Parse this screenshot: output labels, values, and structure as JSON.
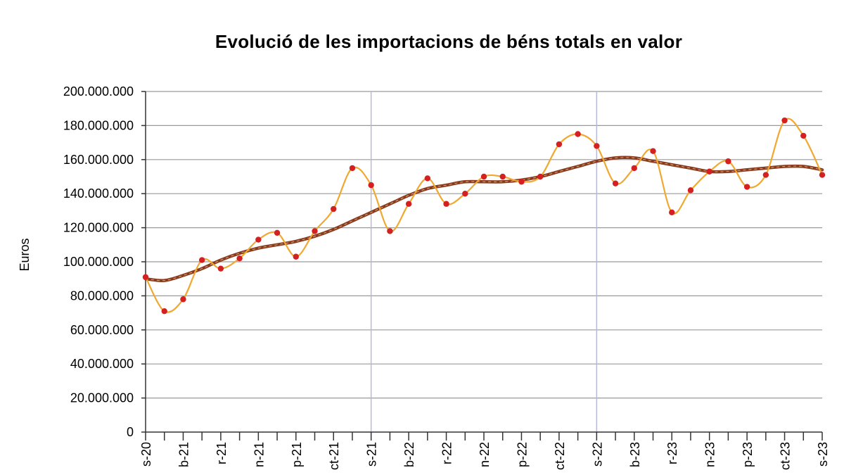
{
  "chart_data": {
    "type": "line",
    "title": "Evolució de les importacions de béns totals en valor",
    "xlabel": "",
    "ylabel": "Euros",
    "ylim": [
      0,
      200000000
    ],
    "yticks": [
      "0",
      "20.000.000",
      "40.000.000",
      "60.000.000",
      "80.000.000",
      "100.000.000",
      "120.000.000",
      "140.000.000",
      "160.000.000",
      "180.000.000",
      "200.000.000"
    ],
    "xtick_labels": [
      "s-20",
      "b-21",
      "r-21",
      "n-21",
      "p-21",
      "ct-21",
      "s-21",
      "b-22",
      "r-22",
      "n-22",
      "p-22",
      "ct-22",
      "s-22",
      "b-23",
      "r-23",
      "n-23",
      "p-23",
      "ct-23",
      "s-23"
    ],
    "grid": true,
    "colors": {
      "monthly_line": "#F0A830",
      "monthly_points": "#D42020",
      "trend_line": "#8B3A1E",
      "grid": "#9a9a9a",
      "year_separator": "#b8b8dc"
    },
    "categories": [
      "s-20",
      "",
      "b-21",
      "",
      "r-21",
      "",
      "n-21",
      "",
      "p-21",
      "",
      "ct-21",
      "",
      "s-21",
      "",
      "b-22",
      "",
      "r-22",
      "",
      "n-22",
      "",
      "p-22",
      "",
      "ct-22",
      "",
      "s-22",
      "",
      "b-23",
      "",
      "r-23",
      "",
      "n-23",
      "",
      "p-23",
      "",
      "ct-23",
      "",
      "s-23"
    ],
    "series": [
      {
        "values": [
          91000000,
          71000000,
          78000000,
          101000000,
          96000000,
          102000000,
          113000000,
          117000000,
          103000000,
          118000000,
          131000000,
          155000000,
          145000000,
          118000000,
          134000000,
          149000000,
          134000000,
          140000000,
          150000000,
          150000000,
          147000000,
          150000000,
          169000000,
          175000000,
          168000000,
          146000000,
          155000000,
          165000000,
          129000000,
          142000000,
          153000000,
          159000000,
          144000000,
          151000000,
          183000000,
          174000000,
          151000000
        ]
      },
      {
        "values": [
          90000000,
          89000000,
          92000000,
          96000000,
          101000000,
          105000000,
          108000000,
          110000000,
          112000000,
          115000000,
          119000000,
          124000000,
          129000000,
          134000000,
          139000000,
          143000000,
          145000000,
          147000000,
          147000000,
          147000000,
          148000000,
          150000000,
          153000000,
          156000000,
          159000000,
          161000000,
          161000000,
          159000000,
          157000000,
          155000000,
          153000000,
          153000000,
          154000000,
          155000000,
          156000000,
          156000000,
          154000000
        ]
      }
    ]
  }
}
